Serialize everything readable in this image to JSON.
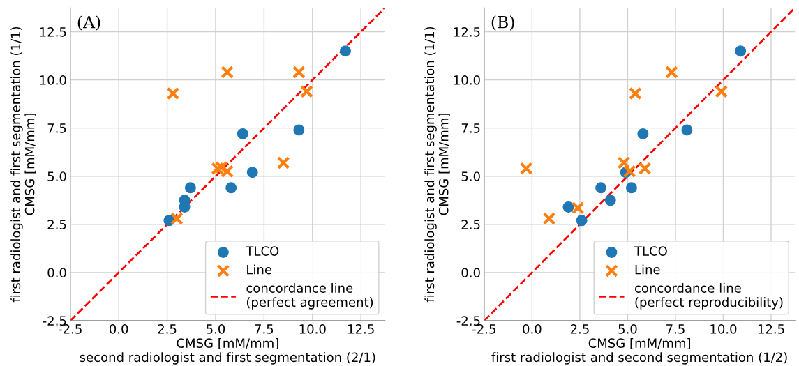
{
  "chart_data": [
    {
      "type": "scatter",
      "annotations": [
        "(A)"
      ],
      "xlabel": "CMSG [mM/mm]\nsecond radiologist and first segmentation (2/1)",
      "ylabel": "first radiologist and first segmentation (1/1)\nCMSG [mM/mm]",
      "xlim": [
        -2.5,
        13.75
      ],
      "ylim": [
        -2.5,
        13.75
      ],
      "xticks": [
        -2.5,
        {
          "value": 0,
          "label": "0.0"
        },
        2.5,
        {
          "value": 5,
          "label": "5.0"
        },
        7.5,
        {
          "value": 10,
          "label": "10.0"
        },
        12.5
      ],
      "yticks": [
        -2.5,
        {
          "value": 0,
          "label": "0.0"
        },
        2.5,
        {
          "value": 5,
          "label": "5.0"
        },
        7.5,
        {
          "value": 10,
          "label": "10.0"
        },
        12.5
      ],
      "grid": true,
      "legend": "bottom right",
      "series": [
        {
          "name": "TLCO",
          "color": "#1f77b4",
          "marker": "circle",
          "x": [
            2.6,
            3.4,
            3.4,
            3.7,
            5.8,
            6.4,
            6.9,
            9.3,
            11.7
          ],
          "values": [
            2.7,
            3.4,
            3.75,
            4.4,
            4.4,
            7.2,
            5.2,
            7.4,
            11.5
          ]
        },
        {
          "name": "Line",
          "color": "#ff7f0e",
          "marker": "cross",
          "x": [
            2.8,
            3.0,
            5.6,
            5.1,
            5.3,
            5.6,
            8.5,
            9.3,
            9.7
          ],
          "values": [
            9.3,
            2.8,
            10.4,
            5.4,
            5.45,
            5.25,
            5.7,
            10.4,
            9.4
          ]
        },
        {
          "name": "concordance line\n(perfect agreement)",
          "type": "line",
          "color": "#ff0000",
          "line_style": "dashed",
          "marker": "none",
          "x": [
            -2.5,
            13.75
          ],
          "values": [
            -2.5,
            13.75
          ]
        }
      ]
    },
    {
      "type": "scatter",
      "annotations": [
        "(B)"
      ],
      "xlabel": "CMSG [mM/mm]\nfirst radiologist and second segmentation (1/2)",
      "ylabel": "first radiologist and first segmentation (1/1)\nCMSG [mM/mm]",
      "xlim": [
        -2.5,
        13.75
      ],
      "ylim": [
        -2.5,
        13.75
      ],
      "xticks": [
        -2.5,
        {
          "value": 0,
          "label": "0.0"
        },
        2.5,
        {
          "value": 5,
          "label": "5.0"
        },
        7.5,
        {
          "value": 10,
          "label": "10.0"
        },
        12.5
      ],
      "yticks": [
        -2.5,
        {
          "value": 0,
          "label": "0.0"
        },
        2.5,
        {
          "value": 5,
          "label": "5.0"
        },
        7.5,
        {
          "value": 10,
          "label": "10.0"
        },
        12.5
      ],
      "grid": true,
      "legend": "bottom right",
      "series": [
        {
          "name": "TLCO",
          "color": "#1f77b4",
          "marker": "circle",
          "x": [
            1.9,
            2.6,
            3.6,
            4.1,
            4.9,
            5.2,
            5.8,
            8.1,
            10.9
          ],
          "values": [
            3.4,
            2.7,
            4.4,
            3.75,
            5.2,
            4.4,
            7.2,
            7.4,
            11.5
          ]
        },
        {
          "name": "Line",
          "color": "#ff7f0e",
          "marker": "cross",
          "x": [
            -0.3,
            0.9,
            2.4,
            4.8,
            5.1,
            5.4,
            5.9,
            7.3,
            9.9
          ],
          "values": [
            5.4,
            2.8,
            3.35,
            5.7,
            5.25,
            9.3,
            5.4,
            10.4,
            9.4
          ]
        },
        {
          "name": "concordance line\n(perfect reproducibility)",
          "type": "line",
          "color": "#ff0000",
          "line_style": "dashed",
          "marker": "none",
          "x": [
            -2.5,
            13.75
          ],
          "values": [
            -2.5,
            13.75
          ]
        }
      ]
    }
  ]
}
